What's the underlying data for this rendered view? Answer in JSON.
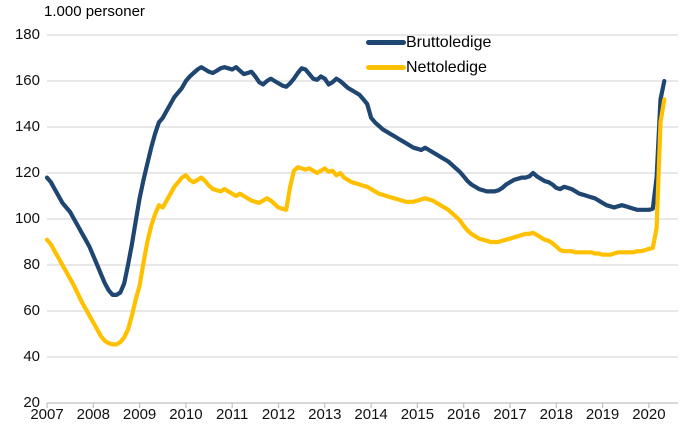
{
  "chart_data": {
    "type": "line",
    "title": "1.000 personer",
    "grid": "horizontal",
    "legend_position": "top-center-inside",
    "colors": {
      "grid": "#D9D9D9",
      "axis": "#BFBFBF",
      "text": "#111111"
    },
    "x_axis": {
      "start": "2007-01",
      "end": "2020-05",
      "frequency": "monthly",
      "tick_labels": [
        "2007",
        "2008",
        "2009",
        "2010",
        "2011",
        "2012",
        "2013",
        "2014",
        "2015",
        "2016",
        "2017",
        "2018",
        "2019",
        "2020"
      ]
    },
    "y_axis": {
      "min": 20,
      "max": 180,
      "ticks": [
        20,
        40,
        60,
        80,
        100,
        120,
        140,
        160,
        180
      ]
    },
    "series": [
      {
        "name": "Bruttoledige",
        "color": "#1F4571",
        "values": [
          118,
          116,
          113,
          110,
          107,
          105,
          103,
          100,
          97,
          94,
          91,
          88,
          84,
          80,
          76,
          72,
          69,
          67,
          67,
          68,
          72,
          80,
          89,
          99,
          109,
          117,
          124,
          131,
          137,
          142,
          144,
          147,
          150,
          153,
          155,
          157,
          160,
          162,
          163.5,
          165,
          166,
          165,
          164,
          163.5,
          164.5,
          165.5,
          166,
          165.5,
          165,
          166,
          164.5,
          163,
          163.5,
          164,
          162,
          159.5,
          158.5,
          160,
          161,
          160,
          159,
          158,
          157.5,
          159,
          161,
          163.5,
          165.5,
          165,
          163,
          161,
          160.5,
          162,
          161,
          158.5,
          159.5,
          161,
          160,
          158.5,
          157,
          156,
          155,
          154,
          152,
          150,
          144,
          142,
          140.5,
          139,
          138,
          137,
          136,
          135,
          134,
          133,
          132,
          131,
          130.5,
          130,
          131,
          130,
          129,
          128,
          127,
          126,
          125,
          123.5,
          122,
          120.5,
          118.5,
          116.5,
          115,
          114,
          113,
          112.5,
          112,
          112,
          112,
          112.5,
          113.5,
          115,
          116,
          117,
          117.5,
          118,
          118,
          118.5,
          120,
          118.5,
          117.5,
          116.5,
          116,
          115,
          113.5,
          113,
          114,
          113.5,
          113,
          112,
          111,
          110.5,
          110,
          109.5,
          109,
          108,
          107,
          106,
          105.5,
          105,
          105.5,
          106,
          105.5,
          105,
          104.5,
          104,
          104,
          104,
          104,
          104.5,
          118,
          152,
          160
        ]
      },
      {
        "name": "Nettoledige",
        "color": "#FFC000",
        "values": [
          91,
          89,
          86,
          83,
          80,
          77,
          74,
          71,
          67.5,
          64,
          61,
          58,
          55,
          52,
          49,
          47,
          46,
          45.5,
          45.5,
          46.5,
          48.5,
          52,
          58,
          65,
          71,
          81,
          90,
          97,
          102,
          106,
          105,
          108,
          111,
          114,
          116,
          118,
          119,
          117,
          116,
          117,
          118,
          116.5,
          114.5,
          113,
          112.5,
          112,
          113,
          112,
          111,
          110,
          111,
          110,
          109,
          108,
          107.5,
          107,
          108,
          109,
          108,
          106.5,
          105,
          104.5,
          104,
          114,
          121,
          122.5,
          122,
          121.5,
          122,
          121,
          120,
          121,
          122,
          120.5,
          121,
          119,
          120,
          118,
          117,
          116,
          115.5,
          115,
          114.5,
          114,
          113,
          112,
          111,
          110.5,
          110,
          109.5,
          109,
          108.5,
          108,
          107.5,
          107.5,
          107.5,
          108,
          108.5,
          109,
          108.5,
          108,
          107,
          106,
          105,
          104,
          102.5,
          101,
          99.5,
          97,
          95,
          93.5,
          92.5,
          91.5,
          91,
          90.5,
          90,
          90,
          90,
          90.5,
          91,
          91.5,
          92,
          92.5,
          93,
          93.5,
          93.5,
          94,
          93,
          92,
          91,
          90.5,
          89.5,
          88,
          86.5,
          86,
          86,
          86,
          85.5,
          85.5,
          85.5,
          85.5,
          85.5,
          85,
          85,
          84.5,
          84.5,
          84.5,
          85,
          85.5,
          85.5,
          85.5,
          85.5,
          85.5,
          86,
          86,
          86.5,
          87,
          87.5,
          96,
          142,
          152
        ]
      }
    ]
  }
}
